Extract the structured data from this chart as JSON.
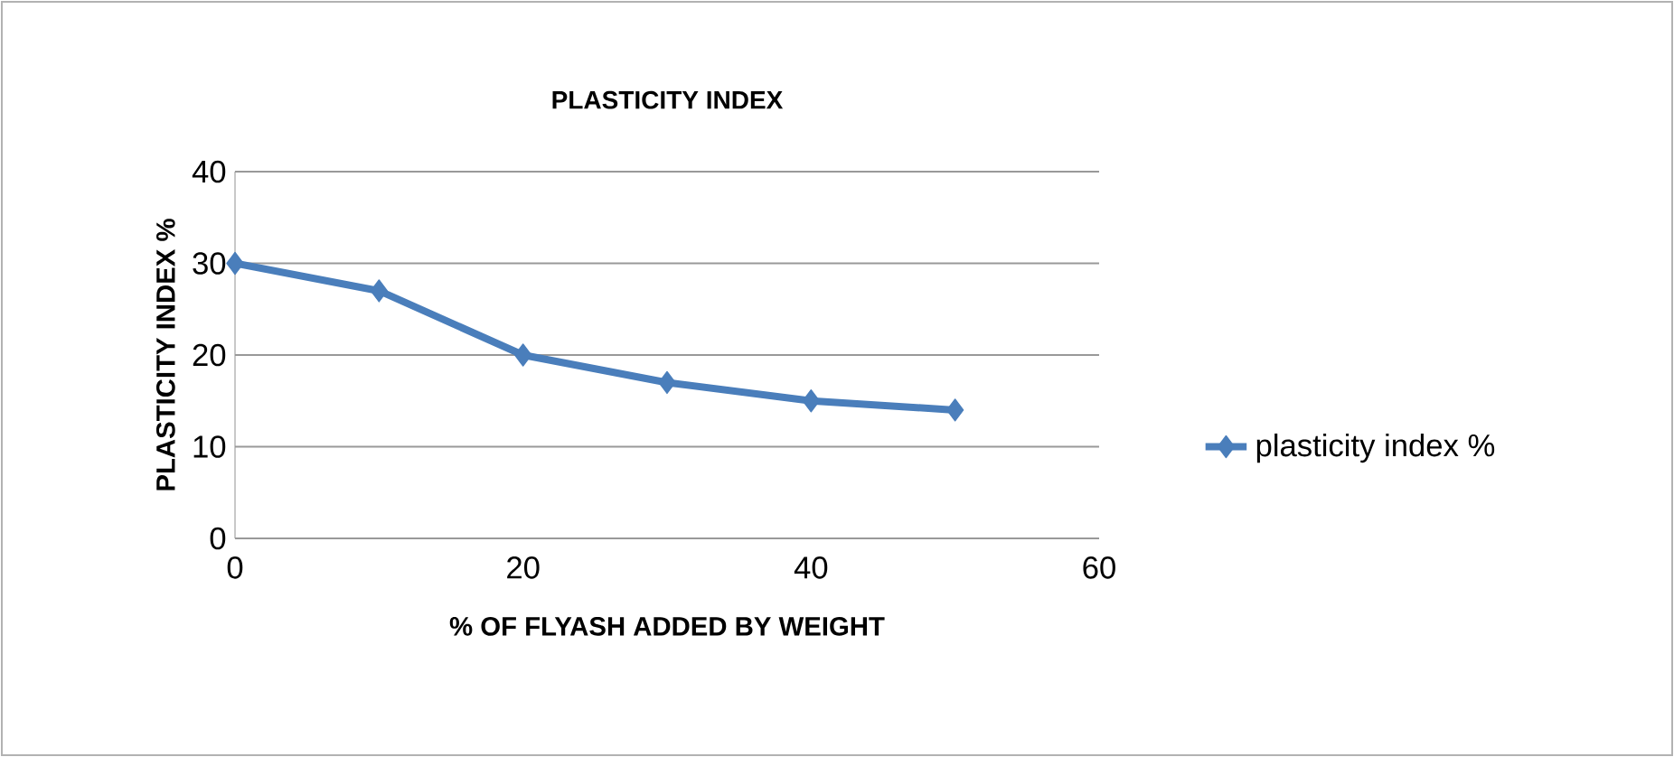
{
  "chart_data": {
    "type": "line",
    "title": "PLASTICITY INDEX",
    "xlabel": "% OF FLYASH ADDED BY WEIGHT",
    "ylabel": "PLASTICITY INDEX %",
    "x": [
      0,
      10,
      20,
      30,
      40,
      50
    ],
    "series": [
      {
        "name": "plasticity index %",
        "color": "#4a7ebb",
        "values": [
          30,
          27,
          20,
          17,
          15,
          14
        ]
      }
    ],
    "xlim": [
      0,
      60
    ],
    "xticks": [
      0,
      20,
      40,
      60
    ],
    "ylim": [
      0,
      40
    ],
    "yticks": [
      0,
      10,
      20,
      30,
      40
    ],
    "grid": "y",
    "legend": "right",
    "marker": "diamond",
    "line_style": "solid"
  }
}
